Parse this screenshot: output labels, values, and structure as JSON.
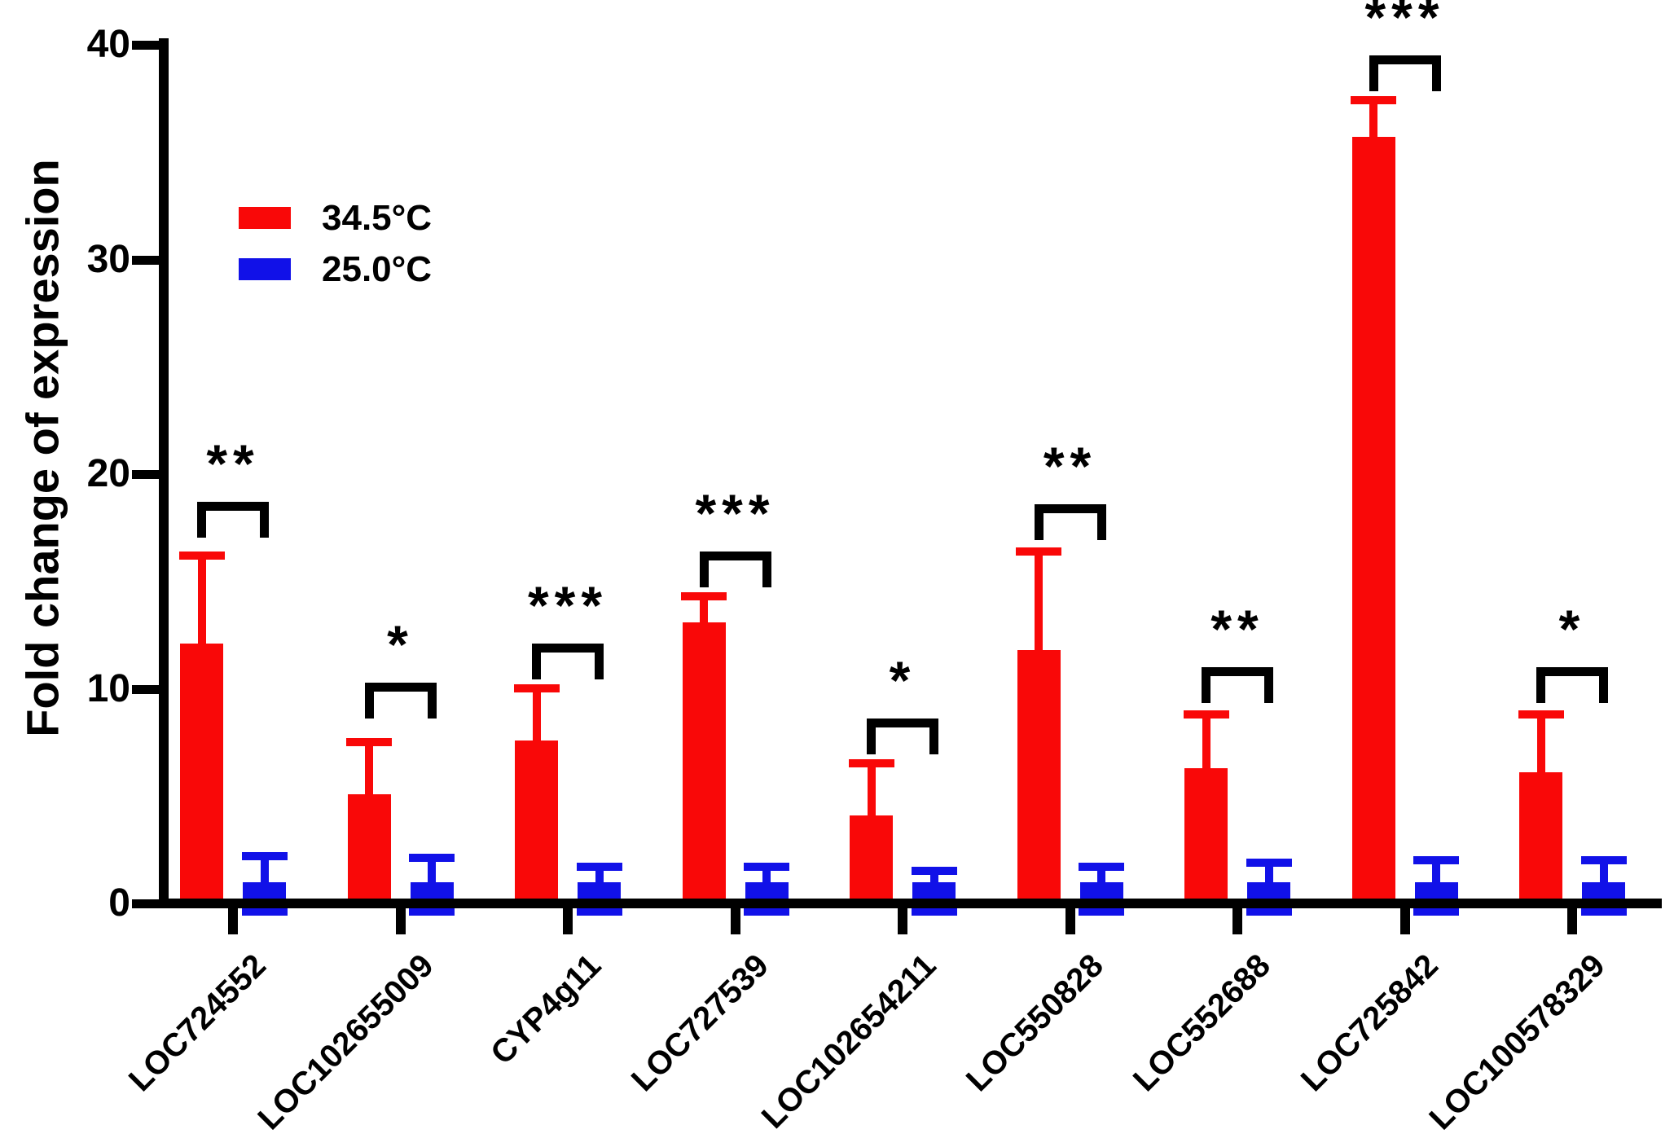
{
  "figure": {
    "background": "#FFFFFF",
    "axis_color": "#000000"
  },
  "chart_data": {
    "type": "bar",
    "title": "",
    "xlabel": "",
    "ylabel": "Fold change of expression",
    "ylim": [
      0,
      40
    ],
    "yticks": [
      0,
      10,
      20,
      30,
      40
    ],
    "grid": false,
    "legend_position": "upper-left-inside",
    "categories": [
      "LOC724552",
      "LOC102655009",
      "CYP4g11",
      "LOC727539",
      "LOC102654211",
      "LOC550828",
      "LOC552688",
      "LOC725842",
      "LOC100578329"
    ],
    "series": [
      {
        "name": "34.5°C",
        "color": "#F90808",
        "values": [
          12.1,
          5.1,
          7.6,
          13.1,
          4.1,
          11.8,
          6.3,
          35.7,
          6.1
        ],
        "error_tops": [
          16.4,
          7.7,
          10.2,
          14.5,
          6.7,
          16.6,
          9.0,
          37.6,
          9.0
        ]
      },
      {
        "name": "25.0°C",
        "color": "#1111E8",
        "values": [
          1.0,
          1.0,
          1.0,
          1.0,
          1.0,
          1.0,
          1.0,
          1.0,
          1.0
        ],
        "error_tops": [
          2.4,
          2.3,
          1.9,
          1.9,
          1.7,
          1.9,
          2.1,
          2.2,
          2.2
        ],
        "error_bottom": -0.4
      }
    ],
    "significance": [
      {
        "category": "LOC724552",
        "label": "**",
        "bracket_top": 18.7
      },
      {
        "category": "LOC102655009",
        "label": "*",
        "bracket_top": 10.3
      },
      {
        "category": "CYP4g11",
        "label": "***",
        "bracket_top": 12.1
      },
      {
        "category": "LOC727539",
        "label": "***",
        "bracket_top": 16.4
      },
      {
        "category": "LOC102654211",
        "label": "*",
        "bracket_top": 8.6
      },
      {
        "category": "LOC550828",
        "label": "**",
        "bracket_top": 18.6
      },
      {
        "category": "LOC552688",
        "label": "**",
        "bracket_top": 11.0
      },
      {
        "category": "LOC725842",
        "label": "***",
        "bracket_top": 39.5
      },
      {
        "category": "LOC100578329",
        "label": "*",
        "bracket_top": 11.0
      }
    ]
  }
}
